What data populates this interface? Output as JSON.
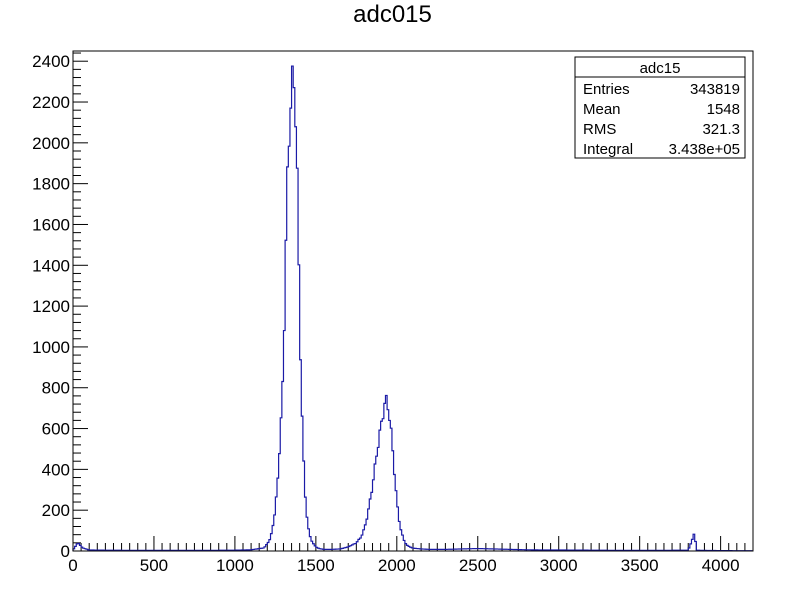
{
  "chart_data": {
    "type": "bar",
    "title": "adc015",
    "xlabel": "",
    "ylabel": "",
    "xlim": [
      0,
      4200
    ],
    "ylim": [
      0,
      2450
    ],
    "x_ticks": [
      0,
      500,
      1000,
      1500,
      2000,
      2500,
      3000,
      3500,
      4000
    ],
    "y_ticks": [
      0,
      200,
      400,
      600,
      800,
      1000,
      1200,
      1400,
      1600,
      1800,
      2000,
      2200,
      2400
    ],
    "grid": false,
    "line_color": "#1a1aa6",
    "series": [
      {
        "x": [
          0,
          30,
          60,
          100,
          200,
          400,
          600,
          800,
          1000,
          1100,
          1180,
          1220,
          1250,
          1270,
          1290,
          1300,
          1310,
          1320,
          1330,
          1340,
          1350,
          1360,
          1370,
          1380,
          1390,
          1400,
          1410,
          1420,
          1430,
          1440,
          1450,
          1460,
          1480,
          1500,
          1520,
          1550,
          1600,
          1650,
          1700,
          1750,
          1780,
          1800,
          1820,
          1840,
          1860,
          1880,
          1900,
          1910,
          1920,
          1930,
          1940,
          1950,
          1960,
          1970,
          1980,
          1990,
          2000,
          2020,
          2040,
          2060,
          2080,
          2100,
          2150,
          2200,
          2300,
          2400,
          2500,
          2600,
          2700,
          2800,
          2900,
          3000,
          3200,
          3400,
          3600,
          3800,
          3840,
          3850,
          3900,
          4000,
          4200
        ],
        "y": [
          5,
          40,
          15,
          5,
          4,
          3,
          3,
          3,
          4,
          6,
          15,
          60,
          200,
          420,
          700,
          950,
          1300,
          1700,
          1950,
          2150,
          2250,
          2320,
          2260,
          2050,
          1600,
          1150,
          800,
          520,
          330,
          210,
          130,
          80,
          40,
          20,
          12,
          8,
          8,
          10,
          20,
          40,
          70,
          110,
          180,
          270,
          380,
          500,
          600,
          650,
          700,
          740,
          730,
          690,
          620,
          540,
          440,
          340,
          240,
          120,
          60,
          30,
          20,
          14,
          10,
          8,
          8,
          10,
          12,
          10,
          8,
          6,
          5,
          5,
          4,
          3,
          3,
          4,
          90,
          4,
          3,
          2,
          1
        ]
      }
    ],
    "stats_box": {
      "title": "adc15",
      "rows": [
        {
          "label": "Entries",
          "value": "343819"
        },
        {
          "label": "Mean",
          "value": "1548"
        },
        {
          "label": "RMS",
          "value": "321.3"
        },
        {
          "label": "Integral",
          "value": "3.438e+05"
        }
      ]
    }
  }
}
